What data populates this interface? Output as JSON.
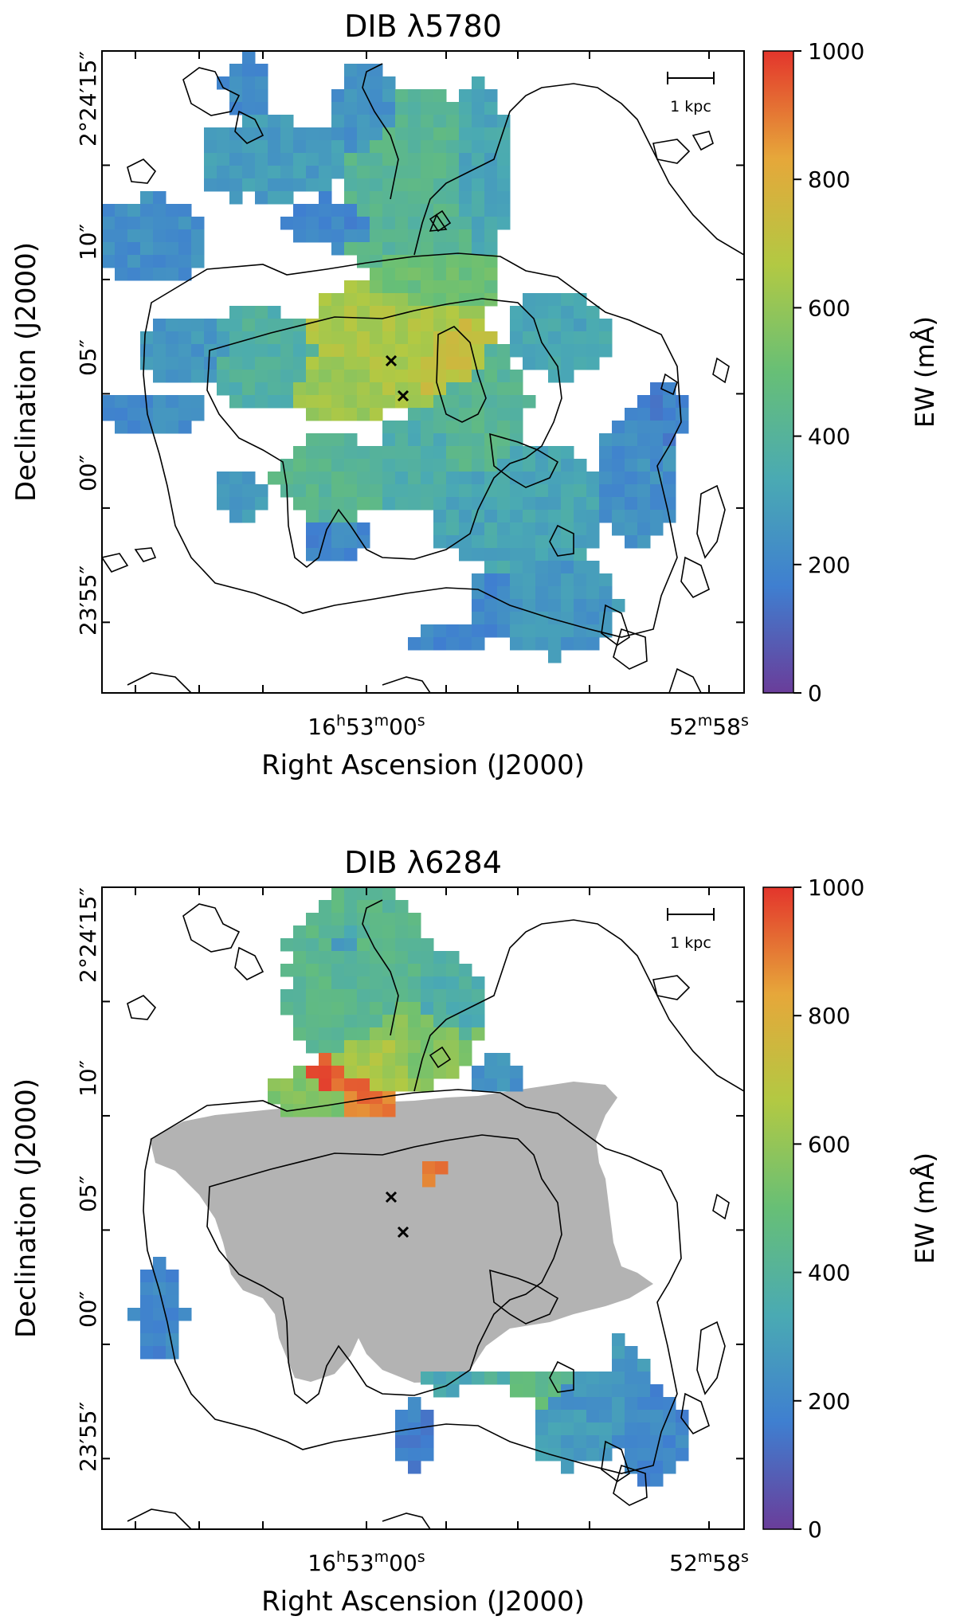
{
  "colors": {
    "colormap": [
      "#6a3d9a",
      "#3f7fd0",
      "#4aaab3",
      "#67bf76",
      "#b2c943",
      "#e6a73a",
      "#e3352c"
    ],
    "masked_region": "#b3b3b3",
    "contour": "#000000"
  },
  "chart_data": [
    {
      "type": "heatmap",
      "title": "DIB λ5780",
      "xlabel": "Right Ascension (J2000)",
      "ylabel": "Declination (J2000)",
      "x_ticks": [
        {
          "main": "16",
          "sup1": "h",
          "main2": "53",
          "sup2": "m",
          "main3": "00",
          "sup3": "s"
        },
        {
          "main": "",
          "sup1": "",
          "main2": "52",
          "sup2": "m",
          "main3": "58",
          "sup3": "s"
        }
      ],
      "y_ticks": [
        "2°24′15″",
        "10″",
        "05″",
        "00″",
        "23′55″"
      ],
      "scalebar_label": "1 kpc",
      "colorbar": {
        "label": "EW (mÅ)",
        "ticks": [
          "0",
          "200",
          "400",
          "600",
          "800",
          "1000"
        ],
        "vmin": 0,
        "vmax": 1000
      },
      "markers": "2 black × symbols near centre",
      "value_range_shown": [
        150,
        750
      ]
    },
    {
      "type": "heatmap",
      "title": "DIB λ6284",
      "xlabel": "Right Ascension (J2000)",
      "ylabel": "Declination (J2000)",
      "x_ticks": [
        {
          "main": "16",
          "sup1": "h",
          "main2": "53",
          "sup2": "m",
          "main3": "00",
          "sup3": "s"
        },
        {
          "main": "",
          "sup1": "",
          "main2": "52",
          "sup2": "m",
          "main3": "58",
          "sup3": "s"
        }
      ],
      "y_ticks": [
        "2°24′15″",
        "10″",
        "05″",
        "00″",
        "23′55″"
      ],
      "scalebar_label": "1 kpc",
      "colorbar": {
        "label": "EW (mÅ)",
        "ticks": [
          "0",
          "200",
          "400",
          "600",
          "800",
          "1000"
        ],
        "vmin": 0,
        "vmax": 1000
      },
      "markers": "2 black × symbols near centre",
      "masked_region": "grey central region",
      "value_range_shown": [
        150,
        1000
      ]
    }
  ]
}
